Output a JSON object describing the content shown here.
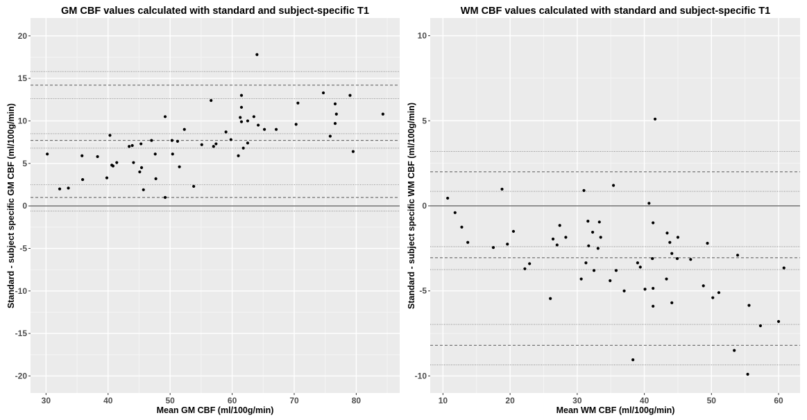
{
  "chart_data": [
    {
      "type": "scatter",
      "title": "GM CBF values calculated with standard and subject-specific T1",
      "xlabel": "Mean GM CBF (ml/100g/min)",
      "ylabel": "Standard - subject specific GM CBF (ml/100g/min)",
      "xlim": [
        27.5,
        87.0
      ],
      "ylim": [
        -22.0,
        22.1
      ],
      "xticks": [
        30,
        40,
        50,
        60,
        70,
        80
      ],
      "yticks": [
        -20,
        -15,
        -10,
        -5,
        0,
        5,
        10,
        15,
        20
      ],
      "grid": true,
      "reference_lines": [
        {
          "y": 0,
          "style": "solid"
        },
        {
          "y": 14.2,
          "style": "dashed"
        },
        {
          "y": 15.8,
          "style": "dotted"
        },
        {
          "y": 12.6,
          "style": "dotted"
        },
        {
          "y": 7.7,
          "style": "dashed"
        },
        {
          "y": 8.5,
          "style": "dotted"
        },
        {
          "y": 6.8,
          "style": "dotted"
        },
        {
          "y": 1.0,
          "style": "dashed"
        },
        {
          "y": 2.5,
          "style": "dotted"
        },
        {
          "y": -0.6,
          "style": "dotted"
        }
      ],
      "points": [
        [
          30.2,
          6.1
        ],
        [
          32.2,
          2.0
        ],
        [
          33.6,
          2.1
        ],
        [
          35.8,
          5.9
        ],
        [
          35.9,
          3.1
        ],
        [
          38.3,
          5.8
        ],
        [
          39.8,
          3.3
        ],
        [
          40.3,
          8.3
        ],
        [
          40.6,
          4.8
        ],
        [
          40.8,
          4.7
        ],
        [
          41.4,
          5.1
        ],
        [
          43.4,
          7.0
        ],
        [
          43.9,
          7.1
        ],
        [
          44.1,
          5.1
        ],
        [
          45.1,
          4.0
        ],
        [
          45.4,
          4.5
        ],
        [
          45.3,
          7.3
        ],
        [
          45.7,
          1.9
        ],
        [
          47.0,
          7.7
        ],
        [
          47.6,
          6.1
        ],
        [
          47.7,
          3.2
        ],
        [
          49.2,
          10.5
        ],
        [
          49.2,
          1.0
        ],
        [
          50.3,
          7.7
        ],
        [
          50.4,
          6.1
        ],
        [
          51.2,
          7.6
        ],
        [
          51.5,
          4.6
        ],
        [
          52.3,
          9.0
        ],
        [
          53.8,
          2.3
        ],
        [
          55.1,
          7.2
        ],
        [
          56.6,
          12.4
        ],
        [
          57.0,
          7.0
        ],
        [
          57.4,
          7.3
        ],
        [
          59.0,
          8.7
        ],
        [
          59.8,
          7.8
        ],
        [
          61.0,
          5.9
        ],
        [
          61.3,
          10.4
        ],
        [
          61.5,
          9.9
        ],
        [
          61.5,
          11.6
        ],
        [
          61.5,
          13.0
        ],
        [
          61.8,
          6.8
        ],
        [
          62.5,
          7.4
        ],
        [
          62.5,
          10.0
        ],
        [
          63.5,
          10.5
        ],
        [
          64.0,
          17.8
        ],
        [
          64.2,
          9.5
        ],
        [
          65.2,
          9.0
        ],
        [
          67.1,
          9.0
        ],
        [
          70.3,
          9.6
        ],
        [
          70.6,
          12.1
        ],
        [
          74.7,
          13.3
        ],
        [
          75.8,
          8.2
        ],
        [
          76.6,
          12.0
        ],
        [
          76.8,
          10.8
        ],
        [
          76.6,
          9.7
        ],
        [
          79.0,
          13.0
        ],
        [
          79.5,
          6.4
        ],
        [
          84.3,
          10.8
        ]
      ]
    },
    {
      "type": "scatter",
      "title": "WM CBF values calculated with standard and subject-specific T1",
      "xlabel": "Mean WM CBF (ml/100g/min)",
      "ylabel": "Standard - subject specific WM CBF (ml/100g/min)",
      "xlim": [
        8.1,
        63.2
      ],
      "ylim": [
        -11.0,
        11.04
      ],
      "xticks": [
        10,
        20,
        30,
        40,
        50,
        60
      ],
      "yticks": [
        -10,
        -5,
        0,
        5,
        10
      ],
      "grid": true,
      "reference_lines": [
        {
          "y": 0,
          "style": "solid"
        },
        {
          "y": 2.0,
          "style": "dashed"
        },
        {
          "y": 3.2,
          "style": "dotted"
        },
        {
          "y": 0.85,
          "style": "dotted"
        },
        {
          "y": -3.05,
          "style": "dashed"
        },
        {
          "y": -2.4,
          "style": "dotted"
        },
        {
          "y": -3.75,
          "style": "dotted"
        },
        {
          "y": -8.2,
          "style": "dashed"
        },
        {
          "y": -6.97,
          "style": "dotted"
        },
        {
          "y": -9.35,
          "style": "dotted"
        }
      ],
      "points": [
        [
          10.7,
          0.45
        ],
        [
          11.8,
          -0.4
        ],
        [
          12.8,
          -1.25
        ],
        [
          13.7,
          -2.15
        ],
        [
          17.5,
          -2.45
        ],
        [
          18.8,
          0.98
        ],
        [
          19.6,
          -2.25
        ],
        [
          20.5,
          -1.5
        ],
        [
          22.2,
          -3.7
        ],
        [
          22.9,
          -3.4
        ],
        [
          26.0,
          -5.45
        ],
        [
          26.4,
          -1.95
        ],
        [
          27.0,
          -2.3
        ],
        [
          27.4,
          -1.15
        ],
        [
          28.3,
          -1.85
        ],
        [
          30.6,
          -4.3
        ],
        [
          31.0,
          0.9
        ],
        [
          31.3,
          -3.35
        ],
        [
          31.6,
          -0.9
        ],
        [
          31.7,
          -2.35
        ],
        [
          32.3,
          -1.55
        ],
        [
          32.5,
          -3.8
        ],
        [
          33.1,
          -2.5
        ],
        [
          33.3,
          -0.95
        ],
        [
          33.5,
          -1.85
        ],
        [
          34.9,
          -4.4
        ],
        [
          35.4,
          1.2
        ],
        [
          35.8,
          -3.8
        ],
        [
          37.0,
          -5.0
        ],
        [
          38.3,
          -9.05
        ],
        [
          39.0,
          -3.35
        ],
        [
          39.4,
          -3.6
        ],
        [
          40.1,
          -4.9
        ],
        [
          40.7,
          0.15
        ],
        [
          41.2,
          -3.1
        ],
        [
          41.3,
          -1.0
        ],
        [
          41.3,
          -4.85
        ],
        [
          41.3,
          -5.9
        ],
        [
          41.6,
          5.1
        ],
        [
          43.3,
          -4.3
        ],
        [
          43.4,
          -1.6
        ],
        [
          43.8,
          -2.15
        ],
        [
          44.1,
          -2.8
        ],
        [
          44.1,
          -5.7
        ],
        [
          44.9,
          -3.1
        ],
        [
          45.0,
          -1.85
        ],
        [
          46.9,
          -3.15
        ],
        [
          48.8,
          -4.7
        ],
        [
          49.4,
          -2.2
        ],
        [
          50.2,
          -5.4
        ],
        [
          51.1,
          -5.1
        ],
        [
          53.4,
          -8.5
        ],
        [
          53.9,
          -2.9
        ],
        [
          55.4,
          -9.9
        ],
        [
          55.6,
          -5.85
        ],
        [
          57.3,
          -7.05
        ],
        [
          60.0,
          -6.8
        ],
        [
          60.8,
          -3.65
        ]
      ]
    }
  ],
  "colors": {
    "panel_bg": "#ebebeb",
    "grid_major": "#ffffff",
    "grid_minor": "#f5f5f5",
    "point": "#000000",
    "ref_line": "#555555",
    "zero_line": "#555555"
  }
}
